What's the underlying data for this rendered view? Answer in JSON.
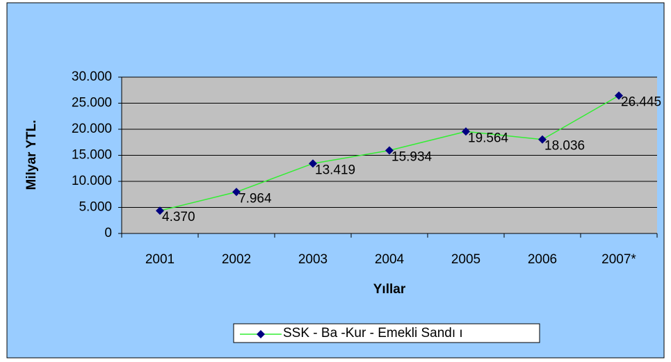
{
  "chart_data": {
    "type": "line",
    "y_label": "Milyar YTL.",
    "x_label": "Yıllar",
    "categories": [
      "2001",
      "2002",
      "2003",
      "2004",
      "2005",
      "2006",
      "2007*"
    ],
    "series": [
      {
        "name": "SSK - Ba  -Kur - Emekli Sandı ı",
        "color": "#33ee33",
        "marker_color": "#000080",
        "values": [
          4370,
          7964,
          13419,
          15934,
          19564,
          18036,
          26445
        ],
        "value_labels": [
          "4.370",
          "7.964",
          "13.419",
          "15.934",
          "19.564",
          "18.036",
          "26.445"
        ]
      }
    ],
    "ylim": [
      0,
      30000
    ],
    "yticks": [
      0,
      {
        "value": 5000,
        "label": "5.000"
      },
      {
        "value": 10000,
        "label": "10.000"
      },
      {
        "value": 15000,
        "label": "15.000"
      },
      {
        "value": 20000,
        "label": "20.000"
      },
      {
        "value": 25000,
        "label": "25.000"
      },
      {
        "value": 30000,
        "label": "30.000"
      }
    ],
    "grid": true,
    "legend": "bottom"
  }
}
